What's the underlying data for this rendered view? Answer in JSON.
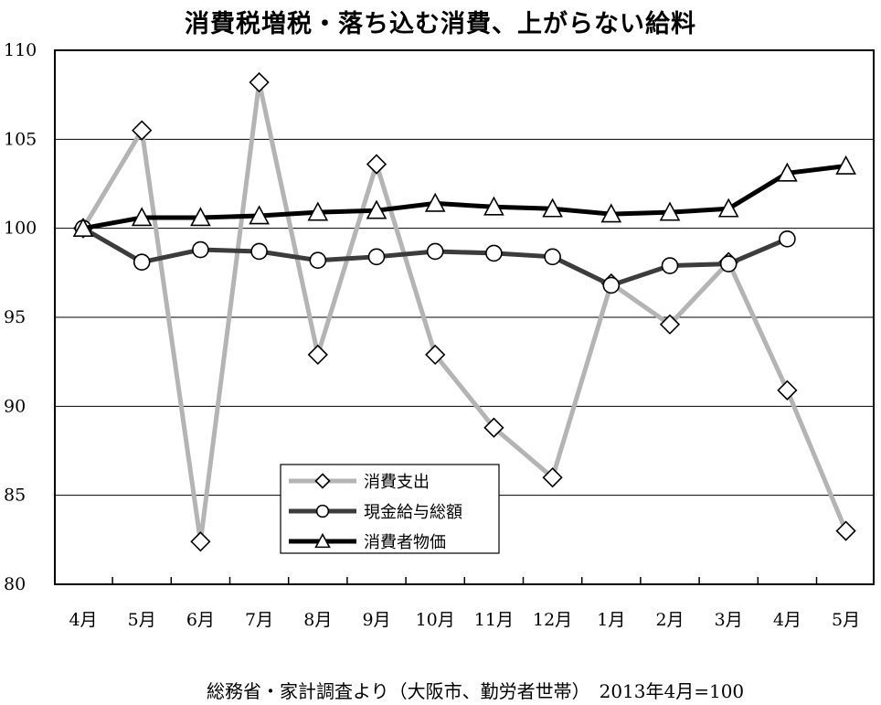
{
  "chart_data": {
    "type": "line",
    "title": "消費税増税・落ち込む消費、上がらない給料",
    "categories": [
      "4月",
      "5月",
      "6月",
      "7月",
      "8月",
      "9月",
      "10月",
      "11月",
      "12月",
      "1月",
      "2月",
      "3月",
      "4月",
      "5月"
    ],
    "ylim": [
      80,
      110
    ],
    "yticks": [
      80,
      85,
      90,
      95,
      100,
      105,
      110
    ],
    "grid": true,
    "legend_position": "bottom-center",
    "series": [
      {
        "name": "消費支出",
        "marker": "diamond",
        "color": "#b4b4b4",
        "values": [
          100.0,
          105.5,
          82.4,
          108.2,
          92.9,
          103.6,
          92.9,
          88.8,
          86.0,
          96.9,
          94.6,
          98.1,
          90.9,
          83.0
        ]
      },
      {
        "name": "現金給与総額",
        "marker": "circle",
        "color": "#3c3c3c",
        "values": [
          100.0,
          98.1,
          98.8,
          98.7,
          98.2,
          98.4,
          98.7,
          98.6,
          98.4,
          96.8,
          97.9,
          98.0,
          99.4,
          null
        ]
      },
      {
        "name": "消費者物価",
        "marker": "triangle",
        "color": "#000000",
        "values": [
          100.0,
          100.6,
          100.6,
          100.7,
          100.9,
          101.0,
          101.4,
          101.2,
          101.1,
          100.8,
          100.9,
          101.1,
          103.1,
          103.5
        ]
      }
    ]
  },
  "source_note": "総務省・家計調査より（大阪市、勤労者世帯）　2013年4月=100"
}
